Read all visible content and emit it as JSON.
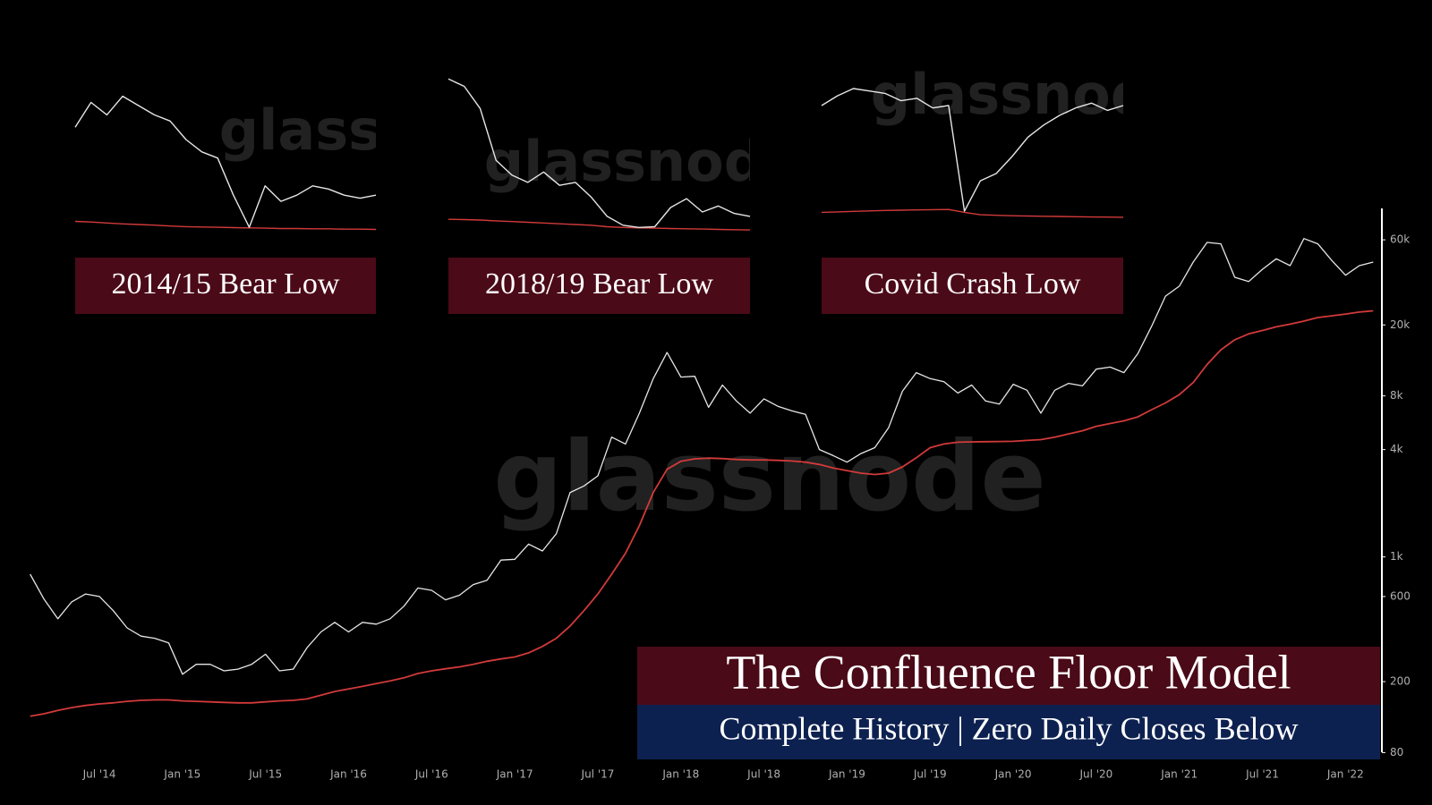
{
  "chart_data": [
    {
      "type": "line",
      "title": "The Confluence Floor Model",
      "subtitle": "Complete History | Zero Daily Closes Below",
      "log_scale": true,
      "x": [
        "2014-02",
        "2014-03",
        "2014-04",
        "2014-05",
        "2014-06",
        "2014-07",
        "2014-08",
        "2014-09",
        "2014-10",
        "2014-11",
        "2014-12",
        "2015-01",
        "2015-02",
        "2015-03",
        "2015-04",
        "2015-05",
        "2015-06",
        "2015-07",
        "2015-08",
        "2015-09",
        "2015-10",
        "2015-11",
        "2015-12",
        "2016-01",
        "2016-02",
        "2016-03",
        "2016-04",
        "2016-05",
        "2016-06",
        "2016-07",
        "2016-08",
        "2016-09",
        "2016-10",
        "2016-11",
        "2016-12",
        "2017-01",
        "2017-02",
        "2017-03",
        "2017-04",
        "2017-05",
        "2017-06",
        "2017-07",
        "2017-08",
        "2017-09",
        "2017-10",
        "2017-11",
        "2017-12",
        "2018-01",
        "2018-02",
        "2018-03",
        "2018-04",
        "2018-05",
        "2018-06",
        "2018-07",
        "2018-08",
        "2018-09",
        "2018-10",
        "2018-11",
        "2018-12",
        "2019-01",
        "2019-02",
        "2019-03",
        "2019-04",
        "2019-05",
        "2019-06",
        "2019-07",
        "2019-08",
        "2019-09",
        "2019-10",
        "2019-11",
        "2019-12",
        "2020-01",
        "2020-02",
        "2020-03",
        "2020-04",
        "2020-05",
        "2020-06",
        "2020-07",
        "2020-08",
        "2020-09",
        "2020-10",
        "2020-11",
        "2020-12",
        "2021-01",
        "2021-02",
        "2021-03",
        "2021-04",
        "2021-05",
        "2021-06",
        "2021-07",
        "2021-08",
        "2021-09",
        "2021-10",
        "2021-11",
        "2021-12",
        "2022-01",
        "2022-02",
        "2022-03"
      ],
      "series": [
        {
          "color": "#e6e6e6",
          "values": [
            800,
            580,
            450,
            560,
            620,
            600,
            500,
            400,
            360,
            350,
            330,
            220,
            250,
            250,
            230,
            235,
            250,
            285,
            230,
            235,
            310,
            380,
            430,
            380,
            430,
            420,
            450,
            530,
            670,
            650,
            575,
            610,
            700,
            740,
            960,
            970,
            1180,
            1080,
            1350,
            2300,
            2500,
            2850,
            4700,
            4300,
            6400,
            10000,
            14000,
            10200,
            10300,
            6900,
            9200,
            7500,
            6400,
            7700,
            7000,
            6600,
            6300,
            4000,
            3700,
            3400,
            3800,
            4100,
            5300,
            8500,
            10800,
            10000,
            9600,
            8300,
            9200,
            7500,
            7200,
            9300,
            8600,
            6400,
            8600,
            9400,
            9100,
            11300,
            11600,
            10800,
            13800,
            19700,
            29000,
            33000,
            45000,
            58000,
            57000,
            37000,
            35000,
            41000,
            47000,
            43000,
            61000,
            57000,
            46000,
            38000,
            43000,
            45000
          ]
        },
        {
          "color": "#d23a3a",
          "values": [
            128,
            132,
            138,
            143,
            147,
            150,
            152,
            155,
            157,
            158,
            158,
            156,
            155,
            154,
            153,
            152,
            152,
            154,
            156,
            157,
            160,
            168,
            176,
            182,
            188,
            195,
            202,
            210,
            222,
            230,
            236,
            242,
            250,
            260,
            268,
            275,
            290,
            315,
            350,
            410,
            500,
            620,
            800,
            1050,
            1500,
            2300,
            3100,
            3440,
            3550,
            3580,
            3560,
            3520,
            3500,
            3500,
            3480,
            3450,
            3400,
            3300,
            3150,
            3050,
            2950,
            2900,
            2950,
            3200,
            3600,
            4100,
            4300,
            4400,
            4420,
            4430,
            4440,
            4450,
            4500,
            4550,
            4700,
            4900,
            5100,
            5400,
            5600,
            5800,
            6100,
            6700,
            7300,
            8130,
            9500,
            12000,
            14500,
            16500,
            17800,
            18600,
            19500,
            20200,
            21000,
            22000,
            22500,
            23000,
            23600,
            24000
          ]
        }
      ],
      "ylim": [
        75,
        90000
      ],
      "yticks": [
        80,
        200,
        600,
        {
          "value": 1000,
          "label": "1k"
        },
        {
          "value": 4000,
          "label": "4k"
        },
        {
          "value": 8000,
          "label": "8k"
        },
        {
          "value": 20000,
          "label": "20k"
        },
        {
          "value": 60000,
          "label": "60k"
        }
      ],
      "xticks": [
        {
          "value": "2014-07",
          "label": "Jul '14"
        },
        {
          "value": "2015-01",
          "label": "Jan '15"
        },
        {
          "value": "2015-07",
          "label": "Jul '15"
        },
        {
          "value": "2016-01",
          "label": "Jan '16"
        },
        {
          "value": "2016-07",
          "label": "Jul '16"
        },
        {
          "value": "2017-01",
          "label": "Jan '17"
        },
        {
          "value": "2017-07",
          "label": "Jul '17"
        },
        {
          "value": "2018-01",
          "label": "Jan '18"
        },
        {
          "value": "2018-07",
          "label": "Jul '18"
        },
        {
          "value": "2019-01",
          "label": "Jan '19"
        },
        {
          "value": "2019-07",
          "label": "Jul '19"
        },
        {
          "value": "2020-01",
          "label": "Jan '20"
        },
        {
          "value": "2020-07",
          "label": "Jul '20"
        },
        {
          "value": "2021-01",
          "label": "Jan '21"
        },
        {
          "value": "2021-07",
          "label": "Jul '21"
        },
        {
          "value": "2022-01",
          "label": "Jan '22"
        }
      ]
    },
    {
      "type": "line",
      "title": "2014/15 Bear Low",
      "ylim": [
        150,
        700
      ],
      "series": [
        {
          "color": "#e6e6e6",
          "values": [
            520,
            600,
            560,
            620,
            590,
            560,
            540,
            480,
            440,
            420,
            300,
            196,
            330,
            280,
            300,
            330,
            320,
            300,
            290,
            300
          ]
        },
        {
          "color": "#d23a3a",
          "values": [
            215,
            213,
            210,
            207,
            205,
            203,
            200,
            198,
            197,
            196,
            195,
            194,
            193,
            192,
            192,
            191,
            191,
            190,
            190,
            189
          ]
        }
      ]
    },
    {
      "type": "line",
      "title": "2018/19 Bear Low",
      "ylim": [
        2500,
        14000
      ],
      "series": [
        {
          "color": "#e6e6e6",
          "values": [
            13500,
            13000,
            11500,
            8000,
            7000,
            6500,
            7200,
            6300,
            6500,
            5500,
            4200,
            3600,
            3450,
            3500,
            4800,
            5400,
            4500,
            4900,
            4400,
            4200
          ]
        },
        {
          "color": "#d23a3a",
          "values": [
            4000,
            3980,
            3950,
            3900,
            3850,
            3800,
            3750,
            3700,
            3650,
            3600,
            3500,
            3450,
            3420,
            3400,
            3380,
            3360,
            3340,
            3320,
            3300,
            3280
          ]
        }
      ]
    },
    {
      "type": "line",
      "title": "Covid Crash Low",
      "ylim": [
        4000,
        11000
      ],
      "series": [
        {
          "color": "#e6e6e6",
          "values": [
            9600,
            10000,
            10300,
            10200,
            10100,
            9800,
            9900,
            9500,
            9600,
            5250,
            6500,
            6800,
            7500,
            8300,
            8800,
            9200,
            9500,
            9700,
            9400,
            9600
          ]
        },
        {
          "color": "#d23a3a",
          "values": [
            5200,
            5220,
            5240,
            5260,
            5280,
            5290,
            5300,
            5310,
            5320,
            5200,
            5100,
            5080,
            5060,
            5050,
            5040,
            5030,
            5020,
            5010,
            5005,
            5000
          ]
        }
      ]
    }
  ],
  "watermark": "glassnode"
}
